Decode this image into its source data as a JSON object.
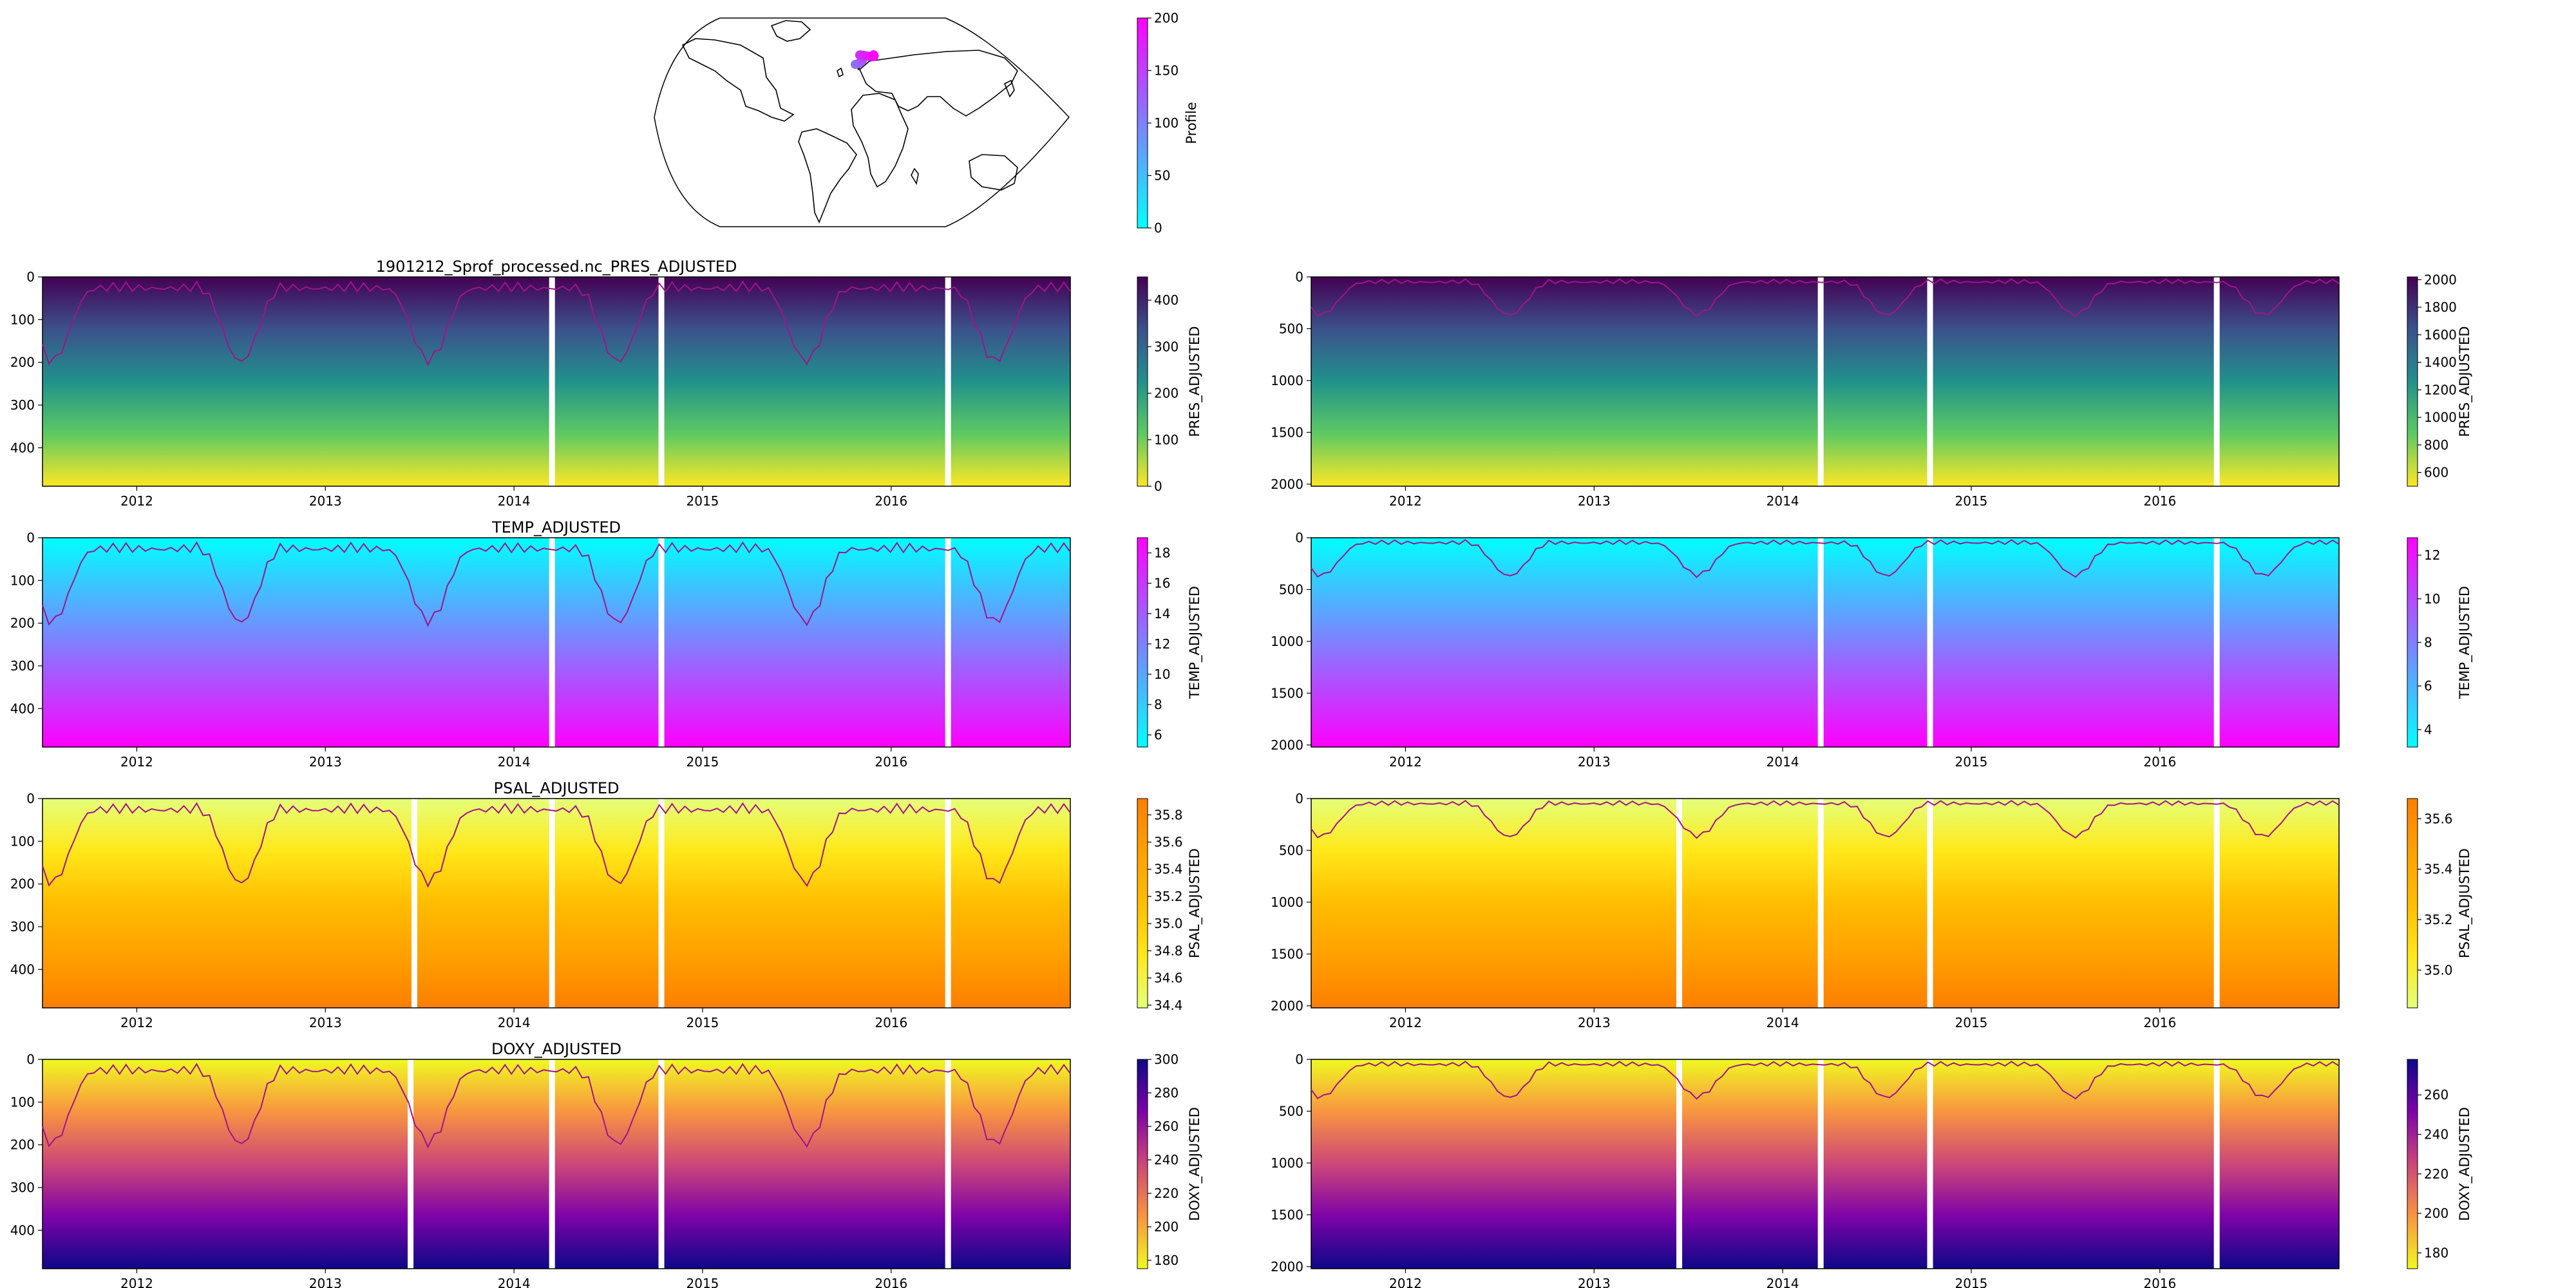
{
  "map": {
    "colorbar_label": "Profile",
    "colorbar_ticks": [
      0,
      50,
      100,
      150,
      200
    ],
    "colorbar_range": [
      0,
      200
    ],
    "colormap": "cool",
    "float_track_color_start": "#8c73ff",
    "float_track_color_end": "#ff00ff"
  },
  "chart_data": [
    {
      "type": "heatmap",
      "panel": "left-pres",
      "title": "1901212_Sprof_processed.nc_PRES_ADJUSTED",
      "colorbar_label": "PRES_ADJUSTED",
      "colormap": "viridis_r",
      "colorbar_range": [
        0,
        450
      ],
      "colorbar_ticks": [
        0,
        100,
        200,
        300,
        400
      ],
      "ylim": [
        490,
        0
      ],
      "yticks": [
        0,
        100,
        200,
        300,
        400
      ],
      "xlim": [
        2011.5,
        2016.95
      ],
      "xticks": [
        "2012",
        "2013",
        "2014",
        "2015",
        "2016"
      ],
      "data_gaps": [
        2014.2,
        2014.78,
        2016.3
      ],
      "overlay_line_color": "#b5179e"
    },
    {
      "type": "heatmap",
      "panel": "right-pres",
      "title": "",
      "colorbar_label": "PRES_ADJUSTED",
      "colormap": "viridis_r",
      "colorbar_range": [
        500,
        2020
      ],
      "colorbar_ticks": [
        600,
        800,
        1000,
        1200,
        1400,
        1600,
        1800,
        2000
      ],
      "ylim": [
        2020,
        0
      ],
      "yticks": [
        0,
        500,
        1000,
        1500,
        2000
      ],
      "xlim": [
        2011.5,
        2016.95
      ],
      "xticks": [
        "2012",
        "2013",
        "2014",
        "2015",
        "2016"
      ],
      "data_gaps": [
        2014.2,
        2014.78,
        2016.3
      ],
      "overlay_line_color": "#b5179e"
    },
    {
      "type": "heatmap",
      "panel": "left-temp",
      "title": "TEMP_ADJUSTED",
      "colorbar_label": "TEMP_ADJUSTED",
      "colormap": "cool",
      "colorbar_range": [
        5.2,
        19
      ],
      "colorbar_ticks": [
        6,
        8,
        10,
        12,
        14,
        16,
        18
      ],
      "ylim": [
        490,
        0
      ],
      "yticks": [
        0,
        100,
        200,
        300,
        400
      ],
      "xlim": [
        2011.5,
        2016.95
      ],
      "xticks": [
        "2012",
        "2013",
        "2014",
        "2015",
        "2016"
      ],
      "data_gaps": [
        2014.2,
        2014.78,
        2016.3
      ]
    },
    {
      "type": "heatmap",
      "panel": "right-temp",
      "title": "",
      "colorbar_label": "TEMP_ADJUSTED",
      "colormap": "cool",
      "colorbar_range": [
        3.2,
        12.8
      ],
      "colorbar_ticks": [
        4,
        6,
        8,
        10,
        12
      ],
      "ylim": [
        2020,
        0
      ],
      "yticks": [
        0,
        500,
        1000,
        1500,
        2000
      ],
      "xlim": [
        2011.5,
        2016.95
      ],
      "xticks": [
        "2012",
        "2013",
        "2014",
        "2015",
        "2016"
      ],
      "data_gaps": [
        2014.2,
        2014.78,
        2016.3
      ]
    },
    {
      "type": "heatmap",
      "panel": "left-psal",
      "title": "PSAL_ADJUSTED",
      "colorbar_label": "PSAL_ADJUSTED",
      "colormap": "Wistia",
      "colorbar_range": [
        34.38,
        35.92
      ],
      "colorbar_ticks": [
        34.4,
        34.6,
        34.8,
        35.0,
        35.2,
        35.4,
        35.6,
        35.8
      ],
      "ylim": [
        490,
        0
      ],
      "yticks": [
        0,
        100,
        200,
        300,
        400
      ],
      "xlim": [
        2011.5,
        2016.95
      ],
      "xticks": [
        "2012",
        "2013",
        "2014",
        "2015",
        "2016"
      ],
      "data_gaps": [
        2013.47,
        2014.2,
        2014.78,
        2016.3
      ]
    },
    {
      "type": "heatmap",
      "panel": "right-psal",
      "title": "",
      "colorbar_label": "PSAL_ADJUSTED",
      "colormap": "Wistia",
      "colorbar_range": [
        34.85,
        35.68
      ],
      "colorbar_ticks": [
        35.0,
        35.2,
        35.4,
        35.6
      ],
      "ylim": [
        2020,
        0
      ],
      "yticks": [
        0,
        500,
        1000,
        1500,
        2000
      ],
      "xlim": [
        2011.5,
        2016.95
      ],
      "xticks": [
        "2012",
        "2013",
        "2014",
        "2015",
        "2016"
      ],
      "data_gaps": [
        2013.45,
        2014.2,
        2014.78,
        2016.3
      ]
    },
    {
      "type": "heatmap",
      "panel": "left-doxy",
      "title": "DOXY_ADJUSTED",
      "colorbar_label": "DOXY_ADJUSTED",
      "colormap": "plasma_r",
      "colorbar_range": [
        175,
        300
      ],
      "colorbar_ticks": [
        180,
        200,
        220,
        240,
        260,
        280,
        300
      ],
      "ylim": [
        490,
        0
      ],
      "yticks": [
        0,
        100,
        200,
        300,
        400
      ],
      "xlim": [
        2011.5,
        2016.95
      ],
      "xticks": [
        "2012",
        "2013",
        "2014",
        "2015",
        "2016"
      ],
      "data_gaps": [
        2013.45,
        2014.2,
        2014.78,
        2016.3
      ]
    },
    {
      "type": "heatmap",
      "panel": "right-doxy",
      "title": "",
      "colorbar_label": "DOXY_ADJUSTED",
      "colormap": "plasma_r",
      "colorbar_range": [
        172,
        278
      ],
      "colorbar_ticks": [
        180,
        200,
        220,
        240,
        260
      ],
      "ylim": [
        2020,
        0
      ],
      "yticks": [
        0,
        500,
        1000,
        1500,
        2000
      ],
      "xlim": [
        2011.5,
        2016.95
      ],
      "xticks": [
        "2012",
        "2013",
        "2014",
        "2015",
        "2016"
      ],
      "data_gaps": [
        2013.45,
        2014.2,
        2014.78,
        2016.3
      ]
    }
  ]
}
